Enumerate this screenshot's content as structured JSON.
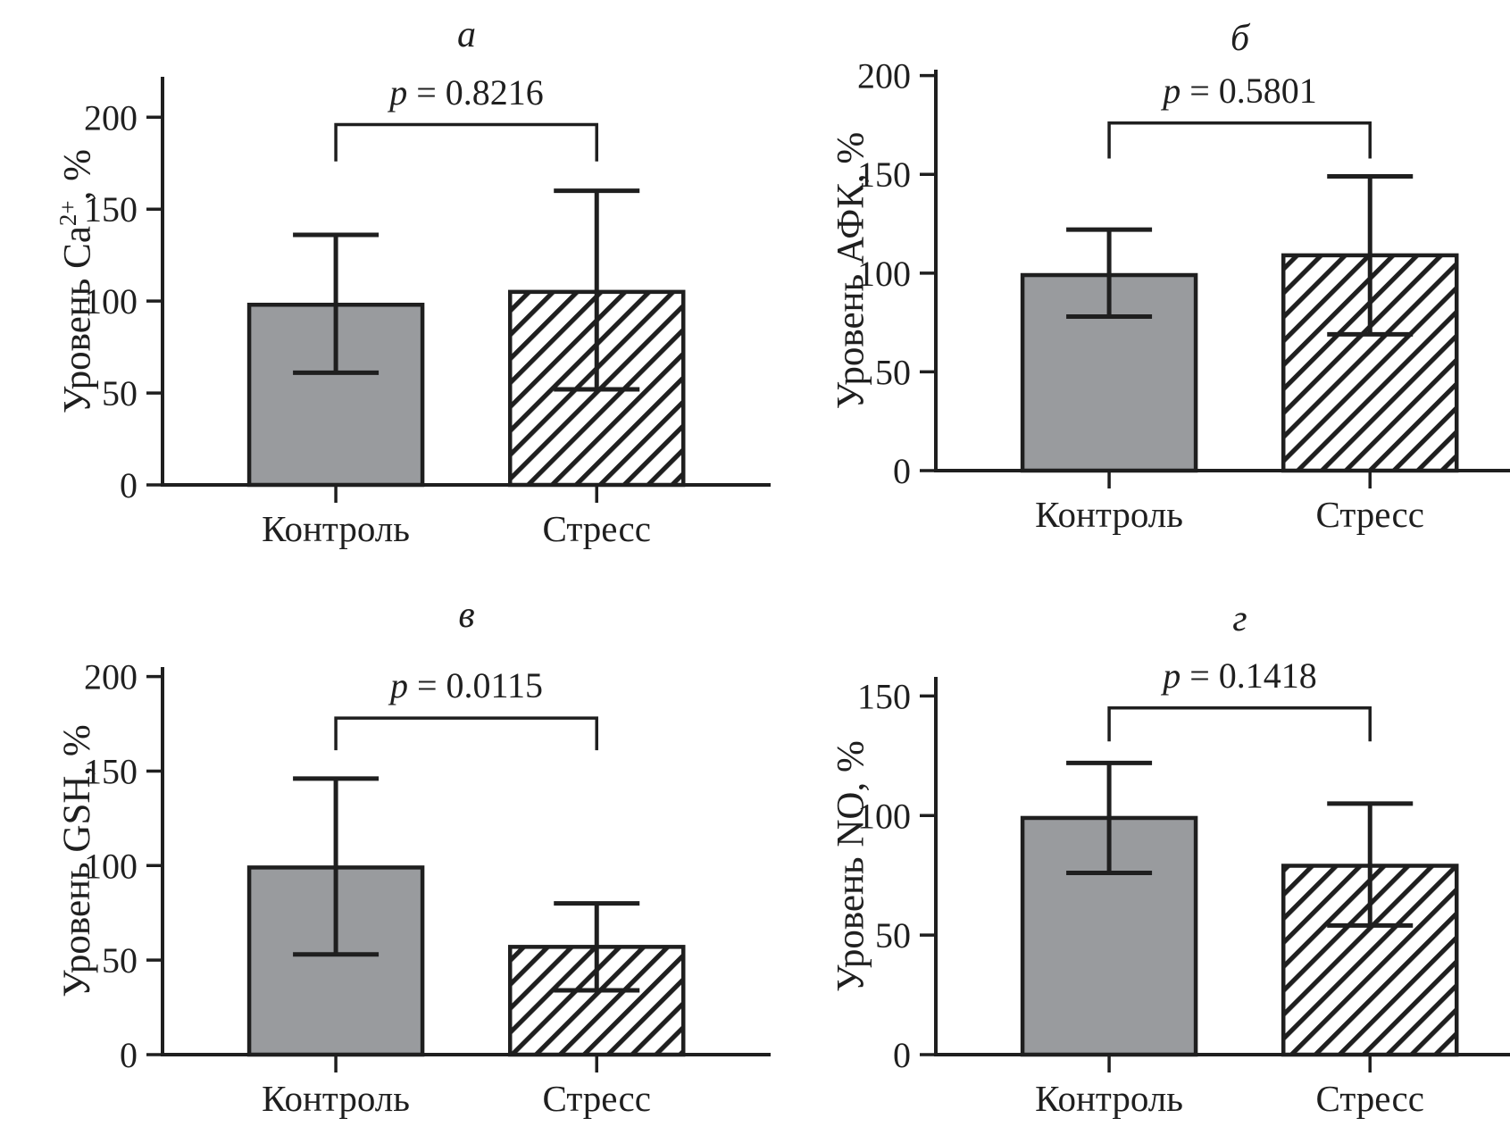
{
  "colors": {
    "ink": "#1f1f1f",
    "control_bar_fill": "#999b9e",
    "background": "#ffffff"
  },
  "categories": [
    "Контроль",
    "Стресс"
  ],
  "series_styles": {
    "Контроль": "solid-gray",
    "Стресс": "diagonal-hatch"
  },
  "chart_data": [
    {
      "type": "bar",
      "panel": "a",
      "title": "а",
      "ylabel": "Уровень Ca²⁺, %",
      "ylabel_parts": [
        {
          "text": "Уровень Ca"
        },
        {
          "text": "2+",
          "sup": true
        },
        {
          "text": ", %"
        }
      ],
      "categories": [
        "Контроль",
        "Стресс"
      ],
      "bars": [
        {
          "category": "Контроль",
          "value": 98,
          "error_low": 61,
          "error_high": 136,
          "style": "solid-gray"
        },
        {
          "category": "Стресс",
          "value": 105,
          "error_low": 52,
          "error_high": 160,
          "style": "diagonal-hatch"
        }
      ],
      "yticks": [
        0,
        50,
        100,
        150,
        200
      ],
      "ylim": [
        0,
        222
      ],
      "grid": false,
      "significance": {
        "label": "p = 0.8216",
        "p_symbol": "p",
        "p_rest": " = 0.8216",
        "p_value": 0.8216,
        "bracket_y": 196,
        "bracket_drop_to": 176
      }
    },
    {
      "type": "bar",
      "panel": "б",
      "title": "б",
      "ylabel": "Уровень АФК, %",
      "categories": [
        "Контроль",
        "Стресс"
      ],
      "bars": [
        {
          "category": "Контроль",
          "value": 99,
          "error_low": 78,
          "error_high": 122,
          "style": "solid-gray"
        },
        {
          "category": "Стресс",
          "value": 109,
          "error_low": 69,
          "error_high": 149,
          "style": "diagonal-hatch"
        }
      ],
      "yticks": [
        0,
        50,
        100,
        150,
        200
      ],
      "ylim": [
        0,
        203
      ],
      "grid": false,
      "significance": {
        "label": "p = 0.5801",
        "p_symbol": "p",
        "p_rest": " = 0.5801",
        "p_value": 0.5801,
        "bracket_y": 176,
        "bracket_drop_to": 158
      }
    },
    {
      "type": "bar",
      "panel": "в",
      "title": "в",
      "ylabel": "Уровень GSH, %",
      "categories": [
        "Контроль",
        "Стресс"
      ],
      "bars": [
        {
          "category": "Контроль",
          "value": 99,
          "error_low": 53,
          "error_high": 146,
          "style": "solid-gray"
        },
        {
          "category": "Стресс",
          "value": 57,
          "error_low": 34,
          "error_high": 80,
          "style": "diagonal-hatch"
        }
      ],
      "yticks": [
        0,
        50,
        100,
        150,
        200
      ],
      "ylim": [
        0,
        205
      ],
      "grid": false,
      "significance": {
        "label": "p = 0.0115",
        "p_symbol": "p",
        "p_rest": " = 0.0115",
        "p_value": 0.0115,
        "bracket_y": 178,
        "bracket_drop_to": 161
      }
    },
    {
      "type": "bar",
      "panel": "г",
      "title": "г",
      "ylabel": "Уровень NO, %",
      "categories": [
        "Контроль",
        "Стресс"
      ],
      "bars": [
        {
          "category": "Контроль",
          "value": 99,
          "error_low": 76,
          "error_high": 122,
          "style": "solid-gray"
        },
        {
          "category": "Стресс",
          "value": 79,
          "error_low": 54,
          "error_high": 105,
          "style": "diagonal-hatch"
        }
      ],
      "yticks": [
        0,
        50,
        100,
        150
      ],
      "ylim": [
        0,
        158
      ],
      "grid": false,
      "significance": {
        "label": "p = 0.1418",
        "p_symbol": "p",
        "p_rest": " = 0.1418",
        "p_value": 0.1418,
        "bracket_y": 145,
        "bracket_drop_to": 131
      }
    }
  ]
}
